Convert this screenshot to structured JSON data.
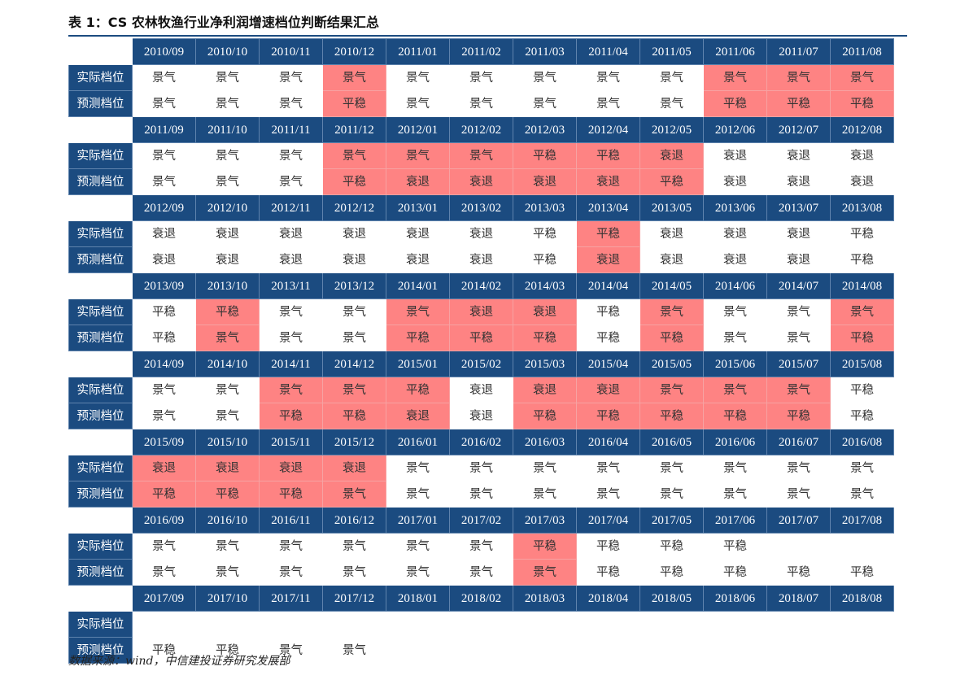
{
  "title": "表 1：CS 农林牧渔行业净利润增速档位判断结果汇总",
  "row_labels": {
    "actual": "实际档位",
    "predicted": "预测档位"
  },
  "highlight_color": "#fe8383",
  "header_color": "#1b4b80",
  "blocks": [
    {
      "months": [
        "2010/09",
        "2010/10",
        "2010/11",
        "2010/12",
        "2011/01",
        "2011/02",
        "2011/03",
        "2011/04",
        "2011/05",
        "2011/06",
        "2011/07",
        "2011/08"
      ],
      "actual": [
        "景气",
        "景气",
        "景气",
        "景气",
        "景气",
        "景气",
        "景气",
        "景气",
        "景气",
        "景气",
        "景气",
        "景气"
      ],
      "predicted": [
        "景气",
        "景气",
        "景气",
        "平稳",
        "景气",
        "景气",
        "景气",
        "景气",
        "景气",
        "平稳",
        "平稳",
        "平稳"
      ],
      "highlight": [
        false,
        false,
        false,
        true,
        false,
        false,
        false,
        false,
        false,
        true,
        true,
        true
      ]
    },
    {
      "months": [
        "2011/09",
        "2011/10",
        "2011/11",
        "2011/12",
        "2012/01",
        "2012/02",
        "2012/03",
        "2012/04",
        "2012/05",
        "2012/06",
        "2012/07",
        "2012/08"
      ],
      "actual": [
        "景气",
        "景气",
        "景气",
        "景气",
        "景气",
        "景气",
        "平稳",
        "平稳",
        "衰退",
        "衰退",
        "衰退",
        "衰退"
      ],
      "predicted": [
        "景气",
        "景气",
        "景气",
        "平稳",
        "衰退",
        "衰退",
        "衰退",
        "衰退",
        "平稳",
        "衰退",
        "衰退",
        "衰退"
      ],
      "highlight": [
        false,
        false,
        false,
        true,
        true,
        true,
        true,
        true,
        true,
        false,
        false,
        false
      ]
    },
    {
      "months": [
        "2012/09",
        "2012/10",
        "2012/11",
        "2012/12",
        "2013/01",
        "2013/02",
        "2013/03",
        "2013/04",
        "2013/05",
        "2013/06",
        "2013/07",
        "2013/08"
      ],
      "actual": [
        "衰退",
        "衰退",
        "衰退",
        "衰退",
        "衰退",
        "衰退",
        "平稳",
        "平稳",
        "衰退",
        "衰退",
        "衰退",
        "平稳"
      ],
      "predicted": [
        "衰退",
        "衰退",
        "衰退",
        "衰退",
        "衰退",
        "衰退",
        "平稳",
        "衰退",
        "衰退",
        "衰退",
        "衰退",
        "平稳"
      ],
      "highlight": [
        false,
        false,
        false,
        false,
        false,
        false,
        false,
        true,
        false,
        false,
        false,
        false
      ]
    },
    {
      "months": [
        "2013/09",
        "2013/10",
        "2013/11",
        "2013/12",
        "2014/01",
        "2014/02",
        "2014/03",
        "2014/04",
        "2014/05",
        "2014/06",
        "2014/07",
        "2014/08"
      ],
      "actual": [
        "平稳",
        "平稳",
        "景气",
        "景气",
        "景气",
        "衰退",
        "衰退",
        "平稳",
        "景气",
        "景气",
        "景气",
        "景气"
      ],
      "predicted": [
        "平稳",
        "景气",
        "景气",
        "景气",
        "平稳",
        "平稳",
        "平稳",
        "平稳",
        "平稳",
        "景气",
        "景气",
        "平稳"
      ],
      "highlight": [
        false,
        true,
        false,
        false,
        true,
        true,
        true,
        false,
        true,
        false,
        false,
        true
      ]
    },
    {
      "months": [
        "2014/09",
        "2014/10",
        "2014/11",
        "2014/12",
        "2015/01",
        "2015/02",
        "2015/03",
        "2015/04",
        "2015/05",
        "2015/06",
        "2015/07",
        "2015/08"
      ],
      "actual": [
        "景气",
        "景气",
        "景气",
        "景气",
        "平稳",
        "衰退",
        "衰退",
        "衰退",
        "景气",
        "景气",
        "景气",
        "平稳"
      ],
      "predicted": [
        "景气",
        "景气",
        "平稳",
        "平稳",
        "衰退",
        "衰退",
        "平稳",
        "平稳",
        "平稳",
        "平稳",
        "平稳",
        "平稳"
      ],
      "highlight": [
        false,
        false,
        true,
        true,
        true,
        false,
        true,
        true,
        true,
        true,
        true,
        false
      ]
    },
    {
      "months": [
        "2015/09",
        "2015/10",
        "2015/11",
        "2015/12",
        "2016/01",
        "2016/02",
        "2016/03",
        "2016/04",
        "2016/05",
        "2016/06",
        "2016/07",
        "2016/08"
      ],
      "actual": [
        "衰退",
        "衰退",
        "衰退",
        "衰退",
        "景气",
        "景气",
        "景气",
        "景气",
        "景气",
        "景气",
        "景气",
        "景气"
      ],
      "predicted": [
        "平稳",
        "平稳",
        "平稳",
        "景气",
        "景气",
        "景气",
        "景气",
        "景气",
        "景气",
        "景气",
        "景气",
        "景气"
      ],
      "highlight": [
        true,
        true,
        true,
        true,
        false,
        false,
        false,
        false,
        false,
        false,
        false,
        false
      ]
    },
    {
      "months": [
        "2016/09",
        "2016/10",
        "2016/11",
        "2016/12",
        "2017/01",
        "2017/02",
        "2017/03",
        "2017/04",
        "2017/05",
        "2017/06",
        "2017/07",
        "2017/08"
      ],
      "actual": [
        "景气",
        "景气",
        "景气",
        "景气",
        "景气",
        "景气",
        "平稳",
        "平稳",
        "平稳",
        "平稳",
        "",
        ""
      ],
      "predicted": [
        "景气",
        "景气",
        "景气",
        "景气",
        "景气",
        "景气",
        "景气",
        "平稳",
        "平稳",
        "平稳",
        "平稳",
        "平稳"
      ],
      "highlight": [
        false,
        false,
        false,
        false,
        false,
        false,
        true,
        false,
        false,
        false,
        false,
        false
      ]
    },
    {
      "months": [
        "2017/09",
        "2017/10",
        "2017/11",
        "2017/12",
        "2018/01",
        "2018/02",
        "2018/03",
        "2018/04",
        "2018/05",
        "2018/06",
        "2018/07",
        "2018/08"
      ],
      "actual": [
        "",
        "",
        "",
        "",
        "",
        "",
        "",
        "",
        "",
        "",
        "",
        ""
      ],
      "predicted": [
        "平稳",
        "平稳",
        "景气",
        "景气",
        "",
        "",
        "",
        "",
        "",
        "",
        "",
        ""
      ],
      "highlight": [
        false,
        false,
        false,
        false,
        false,
        false,
        false,
        false,
        false,
        false,
        false,
        false
      ]
    }
  ],
  "source": "数据来源：wind，中信建投证券研究发展部"
}
